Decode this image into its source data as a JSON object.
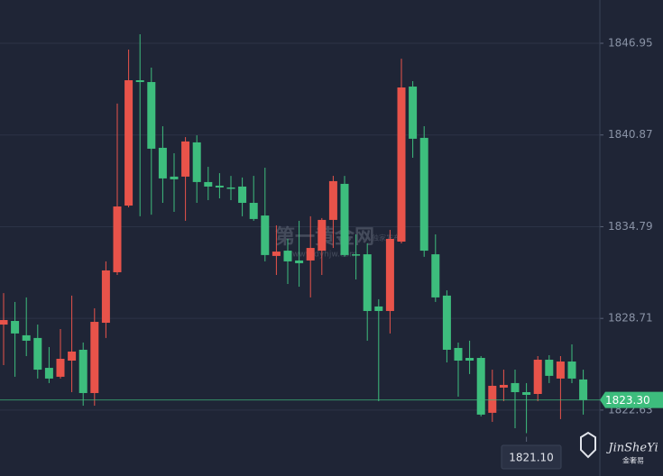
{
  "chart_data": {
    "type": "candlestick",
    "ylim": [
      1818.26,
      1849.82
    ],
    "yticks": [
      1846.95,
      1840.87,
      1834.79,
      1828.71,
      1822.63
    ],
    "grid": true,
    "up_color": "#e8534a",
    "down_color": "#3dbd7d",
    "open": [
      1828.3,
      1828.54,
      1827.59,
      1827.41,
      1825.43,
      1824.84,
      1825.91,
      1826.63,
      1823.76,
      1828.42,
      1831.77,
      1836.19,
      1844.5,
      1844.38,
      1840.02,
      1838.11,
      1838.11,
      1840.38,
      1837.75,
      1837.51,
      1837.39,
      1837.45,
      1836.37,
      1835.53,
      1832.85,
      1833.2,
      1832.55,
      1832.55,
      1833.2,
      1835.24,
      1837.63,
      1832.96,
      1832.96,
      1829.5,
      1829.2,
      1833.8,
      1844.08,
      1840.68,
      1832.96,
      1830.22,
      1826.75,
      1826.09,
      1826.09,
      1822.45,
      1824.12,
      1824.42,
      1823.82,
      1823.7,
      1825.97,
      1824.72,
      1825.85,
      1824.66
    ],
    "high": [
      1830.39,
      1829.8,
      1830.1,
      1828.3,
      1826.81,
      1828.0,
      1830.22,
      1827.11,
      1829.38,
      1832.49,
      1842.95,
      1846.53,
      1847.55,
      1845.34,
      1841.45,
      1839.66,
      1840.73,
      1840.85,
      1838.76,
      1838.34,
      1838.16,
      1838.05,
      1838.16,
      1838.7,
      1834.88,
      1833.98,
      1835.18,
      1835.48,
      1835.36,
      1838.16,
      1838.16,
      1834.28,
      1833.68,
      1829.98,
      1834.58,
      1845.93,
      1844.44,
      1841.45,
      1834.28,
      1830.57,
      1827.11,
      1827.23,
      1826.21,
      1825.31,
      1825.31,
      1825.31,
      1824.42,
      1826.21,
      1826.27,
      1826.21,
      1826.99,
      1825.31
    ],
    "low": [
      1825.61,
      1824.84,
      1826.21,
      1824.72,
      1824.42,
      1824.72,
      1823.82,
      1822.92,
      1822.92,
      1827.41,
      1831.59,
      1836.07,
      1835.48,
      1835.59,
      1836.37,
      1835.77,
      1835.18,
      1836.37,
      1836.55,
      1836.67,
      1836.55,
      1835.48,
      1835.18,
      1832.49,
      1831.59,
      1830.99,
      1830.81,
      1830.1,
      1831.59,
      1833.38,
      1832.79,
      1831.29,
      1827.23,
      1823.22,
      1827.71,
      1833.68,
      1839.36,
      1832.79,
      1829.8,
      1825.79,
      1823.52,
      1825.02,
      1822.21,
      1821.85,
      1823.22,
      1821.43,
      1821.1,
      1823.22,
      1824.42,
      1822.03,
      1824.42,
      1822.33
    ],
    "close": [
      1828.6,
      1827.71,
      1827.23,
      1825.31,
      1824.72,
      1826.03,
      1826.51,
      1823.76,
      1828.48,
      1831.89,
      1836.13,
      1844.5,
      1844.38,
      1839.96,
      1837.99,
      1837.93,
      1840.44,
      1837.75,
      1837.45,
      1837.39,
      1837.33,
      1836.37,
      1835.3,
      1832.91,
      1833.14,
      1832.49,
      1832.37,
      1833.38,
      1835.24,
      1837.81,
      1832.91,
      1832.91,
      1829.2,
      1829.2,
      1833.98,
      1844.02,
      1840.62,
      1833.2,
      1830.1,
      1826.63,
      1825.91,
      1825.91,
      1822.33,
      1824.24,
      1824.3,
      1823.82,
      1823.64,
      1825.97,
      1824.9,
      1825.85,
      1824.72,
      1823.3
    ],
    "last_price": {
      "value": 1823.3,
      "label": "1823.30"
    },
    "low_marker": {
      "value": 1821.1,
      "label": "1821.10"
    },
    "watermark": {
      "name": "第一黄金网",
      "url": "www.dyhjw.com",
      "tag": "独家发布"
    },
    "logo": {
      "name": "JinSheYi",
      "sub": "金奢易"
    }
  }
}
